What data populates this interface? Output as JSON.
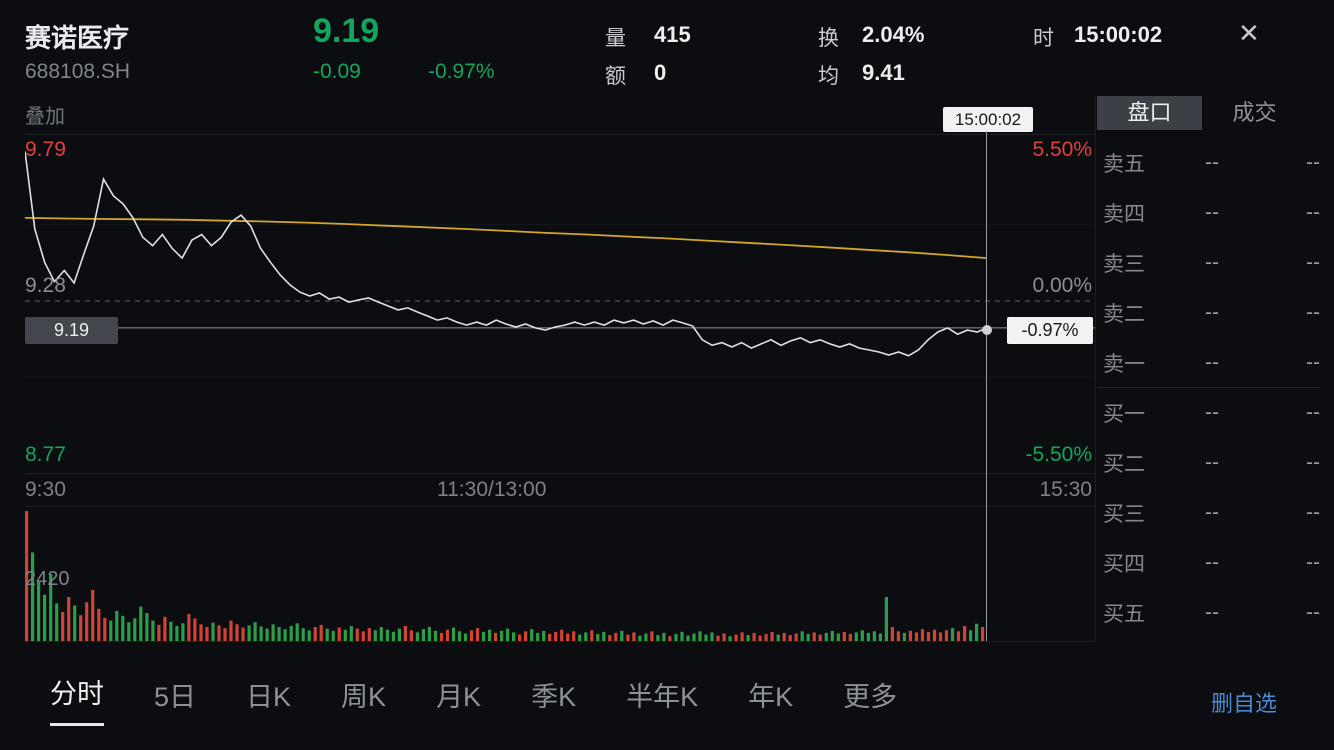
{
  "header": {
    "name": "赛诺医疗",
    "code": "688108.SH",
    "price": "9.19",
    "change": "-0.09",
    "change_pct": "-0.97%",
    "volume_label": "量",
    "volume": "415",
    "amount_label": "额",
    "amount": "0",
    "turnover_label": "换",
    "turnover": "2.04%",
    "avg_label": "均",
    "avg_price": "9.41",
    "time_label": "时",
    "time": "15:00:02",
    "close_glyph": "✕"
  },
  "chart": {
    "overlay_label": "叠加",
    "crosshair_time": "15:00:02",
    "y_left_high": "9.79",
    "y_left_mid": "9.28",
    "y_left_low": "8.77",
    "current_price_tag": "9.19",
    "y_right_high": "5.50%",
    "y_right_mid": "0.00%",
    "current_pct_tag": "-0.97%",
    "y_right_low": "-5.50%",
    "x_labels": [
      "9:30",
      "11:30/13:00",
      "15:30"
    ],
    "volume_scale": "2420"
  },
  "chart_data": {
    "type": "line",
    "title": "赛诺医疗 688108.SH 分时",
    "prev_close": 9.28,
    "day_high": 9.79,
    "day_low_scale": 8.77,
    "ylim_pct": [
      -5.5,
      5.5
    ],
    "x_range": [
      "9:30",
      "15:00"
    ],
    "current_pct": -0.97,
    "colors": {
      "price": "#dfe1e4",
      "avg": "#d2a62c",
      "up": "#d04438",
      "down": "#2c9e4b",
      "zero_line": "#5c6168",
      "cur_line": "#8d939b"
    },
    "series": [
      {
        "name": "price_pct",
        "values": [
          5.4,
          2.6,
          1.4,
          0.7,
          1.1,
          0.65,
          1.7,
          2.7,
          4.4,
          3.8,
          3.5,
          3.0,
          2.3,
          2.0,
          2.4,
          1.9,
          1.55,
          2.2,
          2.4,
          2.0,
          2.3,
          2.85,
          3.1,
          2.7,
          1.9,
          1.4,
          0.94,
          0.58,
          0.32,
          0.18,
          0.29,
          0.07,
          0.14,
          -0.04,
          0.04,
          0.11,
          -0.04,
          -0.18,
          -0.32,
          -0.25,
          -0.4,
          -0.54,
          -0.69,
          -0.61,
          -0.76,
          -0.87,
          -0.76,
          -0.87,
          -0.69,
          -0.83,
          -0.94,
          -0.83,
          -0.97,
          -1.05,
          -0.94,
          -0.87,
          -0.76,
          -0.87,
          -0.76,
          -0.87,
          -0.69,
          -0.79,
          -0.69,
          -0.83,
          -0.72,
          -0.87,
          -0.69,
          -0.79,
          -0.9,
          -1.4,
          -1.6,
          -1.5,
          -1.66,
          -1.5,
          -1.7,
          -1.55,
          -1.4,
          -1.6,
          -1.44,
          -1.33,
          -1.5,
          -1.4,
          -1.55,
          -1.66,
          -1.55,
          -1.7,
          -1.77,
          -1.84,
          -1.95,
          -1.84,
          -1.98,
          -1.77,
          -1.4,
          -1.12,
          -0.97,
          -1.2,
          -1.05,
          -1.12,
          -0.97
        ]
      },
      {
        "name": "avg_pct",
        "values": [
          3.0,
          2.98,
          2.96,
          2.95,
          2.93,
          2.9,
          2.87,
          2.83,
          2.78,
          2.72,
          2.66,
          2.6,
          2.53,
          2.46,
          2.4,
          2.33,
          2.26,
          2.18,
          2.1,
          2.02,
          1.94,
          1.85,
          1.76,
          1.66,
          1.55
        ]
      },
      {
        "name": "volume",
        "values": [
          2420,
          1650,
          1100,
          860,
          1250,
          700,
          540,
          820,
          660,
          480,
          720,
          950,
          600,
          430,
          380,
          560,
          470,
          350,
          420,
          640,
          520,
          380,
          300,
          450,
          360,
          280,
          330,
          500,
          420,
          310,
          260,
          340,
          290,
          240,
          380,
          310,
          250,
          290,
          350,
          270,
          230,
          310,
          260,
          220,
          280,
          330,
          240,
          200,
          260,
          300,
          230,
          190,
          250,
          210,
          280,
          230,
          180,
          240,
          200,
          260,
          210,
          170,
          230,
          280,
          200,
          160,
          220,
          260,
          190,
          150,
          210,
          250,
          180,
          140,
          200,
          240,
          170,
          210,
          150,
          190,
          230,
          160,
          120,
          180,
          220,
          150,
          190,
          130,
          170,
          210,
          140,
          180,
          120,
          160,
          200,
          130,
          170,
          110,
          150,
          190,
          120,
          160,
          100,
          140,
          180,
          110,
          150,
          90,
          130,
          170,
          100,
          140,
          180,
          120,
          160,
          100,
          140,
          90,
          120,
          160,
          110,
          150,
          100,
          130,
          170,
          120,
          150,
          110,
          140,
          180,
          130,
          160,
          120,
          150,
          190,
          140,
          170,
          130,
          160,
          200,
          150,
          180,
          140,
          820,
          260,
          180,
          150,
          190,
          160,
          220,
          170,
          210,
          160,
          200,
          240,
          180,
          280,
          200,
          320,
          260
        ]
      }
    ]
  },
  "panel": {
    "tabs": [
      {
        "label": "盘口"
      },
      {
        "label": "成交"
      }
    ],
    "sell_rows": [
      {
        "label": "卖五",
        "price": "--",
        "volume": "--"
      },
      {
        "label": "卖四",
        "price": "--",
        "volume": "--"
      },
      {
        "label": "卖三",
        "price": "--",
        "volume": "--"
      },
      {
        "label": "卖二",
        "price": "--",
        "volume": "--"
      },
      {
        "label": "卖一",
        "price": "--",
        "volume": "--"
      }
    ],
    "buy_rows": [
      {
        "label": "买一",
        "price": "--",
        "volume": "--"
      },
      {
        "label": "买二",
        "price": "--",
        "volume": "--"
      },
      {
        "label": "买三",
        "price": "--",
        "volume": "--"
      },
      {
        "label": "买四",
        "price": "--",
        "volume": "--"
      },
      {
        "label": "买五",
        "price": "--",
        "volume": "--"
      }
    ]
  },
  "bottom": {
    "tabs": [
      "分时",
      "5日",
      "日K",
      "周K",
      "月K",
      "季K",
      "半年K",
      "年K",
      "更多"
    ],
    "active": "分时",
    "watchlist_action": "删自选"
  }
}
